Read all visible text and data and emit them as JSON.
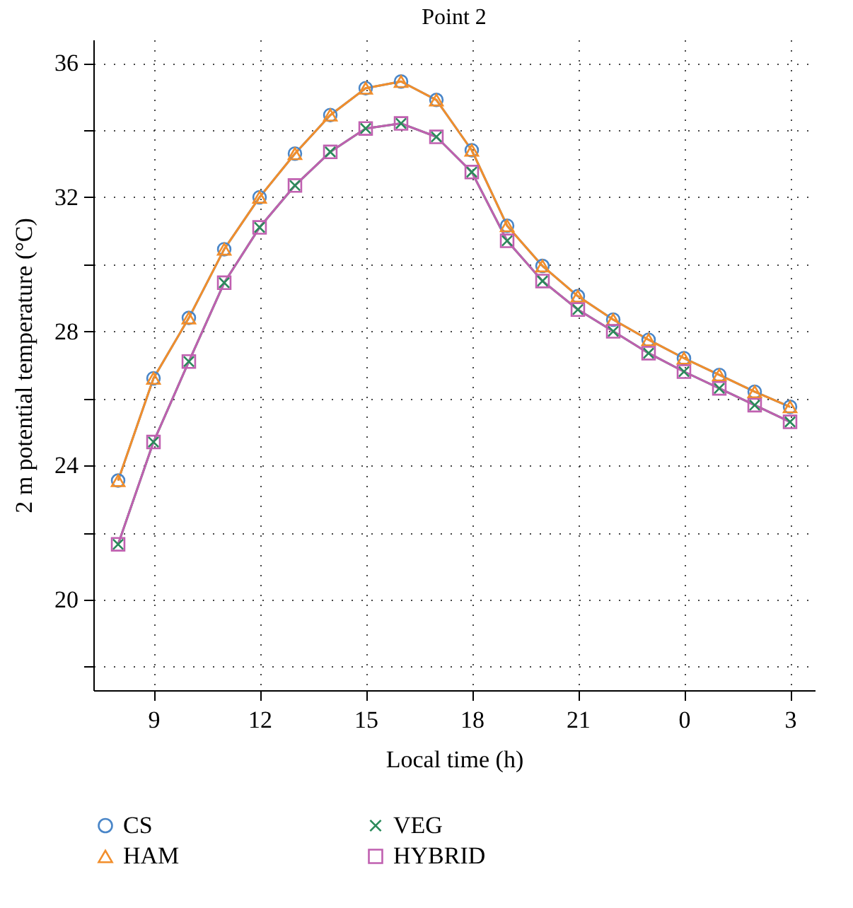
{
  "chart_data": {
    "type": "line",
    "title": "Point 2",
    "xlabel": "Local time (h)",
    "ylabel": "2 m potential temperature (°C)",
    "categories": [
      null,
      "9",
      null,
      null,
      "12",
      null,
      null,
      "15",
      null,
      null,
      "18",
      null,
      null,
      "21",
      null,
      null,
      "0",
      null,
      null,
      "3"
    ],
    "series": [
      {
        "name": "CS",
        "color": "#4a86c8",
        "marker": "circle",
        "values": [
          23.55,
          26.6,
          28.4,
          30.45,
          32.0,
          33.3,
          34.45,
          35.25,
          35.45,
          34.9,
          33.4,
          31.15,
          29.95,
          29.05,
          28.35,
          27.75,
          27.2,
          26.7,
          26.2,
          25.75
        ]
      },
      {
        "name": "HAM",
        "color": "#f28e2b",
        "marker": "triangle",
        "values": [
          23.55,
          26.6,
          28.4,
          30.45,
          32.0,
          33.3,
          34.45,
          35.25,
          35.45,
          34.9,
          33.4,
          31.15,
          29.95,
          29.05,
          28.35,
          27.75,
          27.2,
          26.7,
          26.2,
          25.75
        ]
      },
      {
        "name": "VEG",
        "color": "#2a8a5a",
        "marker": "cross",
        "values": [
          21.65,
          24.7,
          27.1,
          29.45,
          31.1,
          32.35,
          33.35,
          34.05,
          34.2,
          33.8,
          32.75,
          30.7,
          29.5,
          28.65,
          28.0,
          27.35,
          26.8,
          26.3,
          25.8,
          25.3
        ]
      },
      {
        "name": "HYBRID",
        "color": "#c060b0",
        "marker": "square",
        "values": [
          21.65,
          24.7,
          27.1,
          29.45,
          31.1,
          32.35,
          33.35,
          34.05,
          34.2,
          33.8,
          32.75,
          30.7,
          29.5,
          28.65,
          28.0,
          27.35,
          26.8,
          26.3,
          25.8,
          25.3
        ]
      }
    ],
    "ylim": [
      17.3,
      36.7
    ],
    "yticks": [
      {
        "value": 18,
        "label": null
      },
      20,
      {
        "value": 22,
        "label": null
      },
      24,
      {
        "value": 26,
        "label": null
      },
      28,
      {
        "value": 30,
        "label": null
      },
      32,
      {
        "value": 34,
        "label": null
      },
      36
    ],
    "grid": true,
    "legend": "bottom",
    "line_style": "solid"
  }
}
